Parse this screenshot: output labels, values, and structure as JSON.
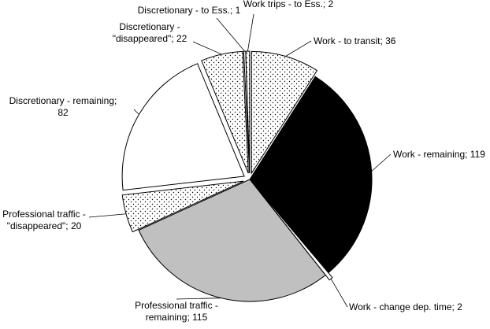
{
  "chart_data": {
    "type": "pie",
    "title": "",
    "slices": [
      {
        "label": "Work - to transit; 36",
        "value": 36,
        "fill": "dots",
        "exploded": true
      },
      {
        "label": "Work - remaining; 119",
        "value": 119,
        "fill": "#000000",
        "exploded": false
      },
      {
        "label": "Work - change dep. time; 2",
        "value": 2,
        "fill": "#ffffff",
        "exploded": true
      },
      {
        "label": "Professional traffic - remaining; 115",
        "label_lines": [
          "Professional traffic -",
          "remaining; 115"
        ],
        "value": 115,
        "fill": "#c0c0c0",
        "exploded": false
      },
      {
        "label": "Professional traffic - \"disappeared\"; 20",
        "label_lines": [
          "Professional traffic -",
          "\"disappeared\"; 20"
        ],
        "value": 20,
        "fill": "dots",
        "exploded": true
      },
      {
        "label": "Discretionary - remaining; 82",
        "label_lines": [
          "Discretionary - remaining;",
          "82"
        ],
        "value": 82,
        "fill": "#ffffff",
        "exploded": true
      },
      {
        "label": "Discretionary - \"disappeared\"; 22",
        "label_lines": [
          "Discretionary -",
          "\"disappeared\"; 22"
        ],
        "value": 22,
        "fill": "dots",
        "exploded": true
      },
      {
        "label": "Discretionary - to Ess.; 1",
        "value": 1,
        "fill": "#ffffff",
        "exploded": true
      },
      {
        "label": "Work trips - to Ess.; 2",
        "value": 2,
        "fill": "dots",
        "exploded": true
      }
    ]
  }
}
